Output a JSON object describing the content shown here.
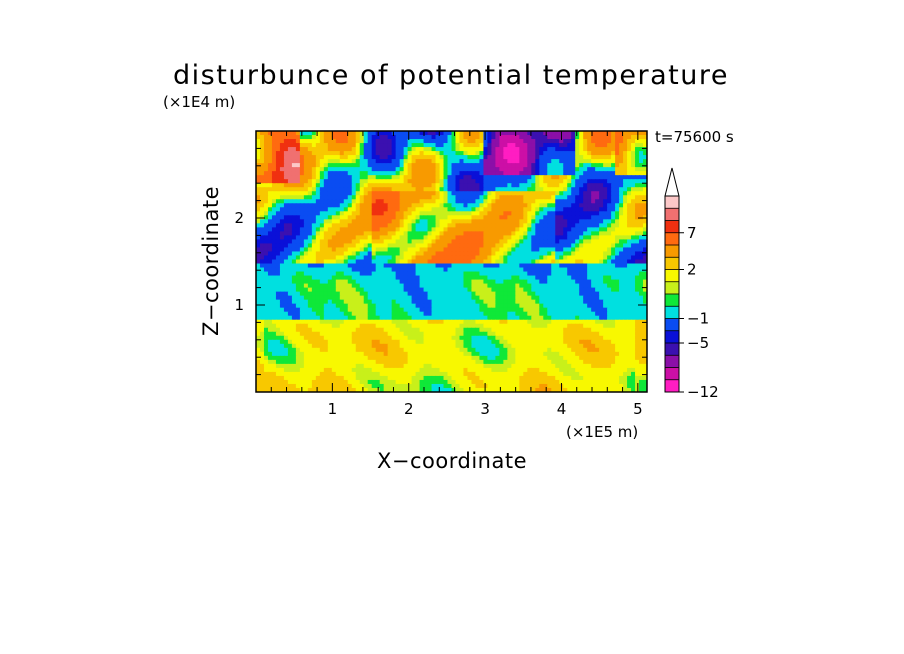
{
  "chart_data": {
    "type": "heatmap",
    "title": "disturbunce of potential temperature",
    "time_label": "t=75600 s",
    "xlabel": "X−coordinate",
    "ylabel": "Z−coordinate",
    "x_scale_label": "(×1E5 m)",
    "y_scale_label": "(×1E4 m)",
    "xlim": [
      0,
      5.12
    ],
    "ylim": [
      0,
      3.0
    ],
    "x_ticks": [
      "1",
      "2",
      "3",
      "4",
      "5"
    ],
    "y_ticks": [
      "1",
      "2"
    ],
    "colorbar": {
      "labels": [
        "−12",
        "−5",
        "−1",
        "2",
        "7"
      ],
      "extend_top": true,
      "colors": [
        "#ff1dc2",
        "#cc0fa6",
        "#8b0fa8",
        "#3b10b0",
        "#0a10d8",
        "#0a4cf2",
        "#00e0e0",
        "#0fe838",
        "#c8f01a",
        "#f8f800",
        "#f8c800",
        "#f89a00",
        "#ff6a10",
        "#f03010",
        "#f07070",
        "#fcc8c8"
      ]
    }
  }
}
